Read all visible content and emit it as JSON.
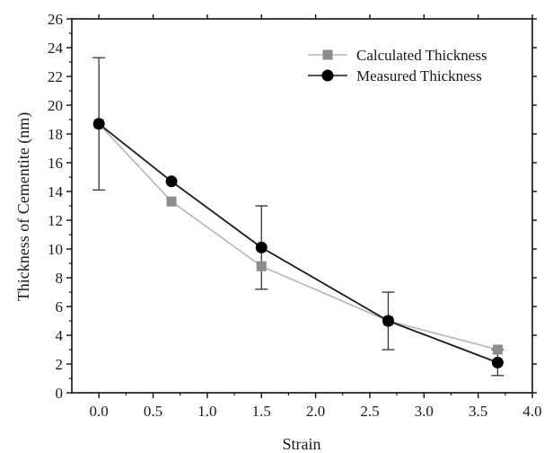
{
  "chart_data": {
    "type": "line",
    "xlabel": "Strain",
    "ylabel": "Thickness of Cementite (nm)",
    "xlim": [
      -0.25,
      4.0
    ],
    "ylim": [
      0,
      26
    ],
    "x_ticks": [
      0.0,
      0.5,
      1.0,
      1.5,
      2.0,
      2.5,
      3.0,
      3.5,
      4.0
    ],
    "x_tick_labels": [
      "0.0",
      "0.5",
      "1.0",
      "1.5",
      "2.0",
      "2.5",
      "3.0",
      "3.5",
      "4.0"
    ],
    "y_ticks": [
      0,
      2,
      4,
      6,
      8,
      10,
      12,
      14,
      16,
      18,
      20,
      22,
      24,
      26
    ],
    "y_tick_labels": [
      "0",
      "2",
      "4",
      "6",
      "8",
      "10",
      "12",
      "14",
      "16",
      "18",
      "20",
      "22",
      "24",
      "26"
    ],
    "grid": false,
    "legend_position": "top-right",
    "series": [
      {
        "name": "Calculated Thickness",
        "marker": "square",
        "color": "#8c8c8c",
        "x": [
          0.0,
          0.67,
          1.5,
          2.67,
          3.68
        ],
        "y": [
          18.7,
          13.3,
          8.8,
          5.0,
          3.0
        ]
      },
      {
        "name": "Measured Thickness",
        "marker": "circle",
        "color": "#000000",
        "x": [
          0.0,
          0.67,
          1.5,
          2.67,
          3.68
        ],
        "y": [
          18.7,
          14.7,
          10.1,
          5.0,
          2.1
        ],
        "error": [
          4.6,
          0,
          2.9,
          2.0,
          0.9
        ]
      }
    ]
  }
}
